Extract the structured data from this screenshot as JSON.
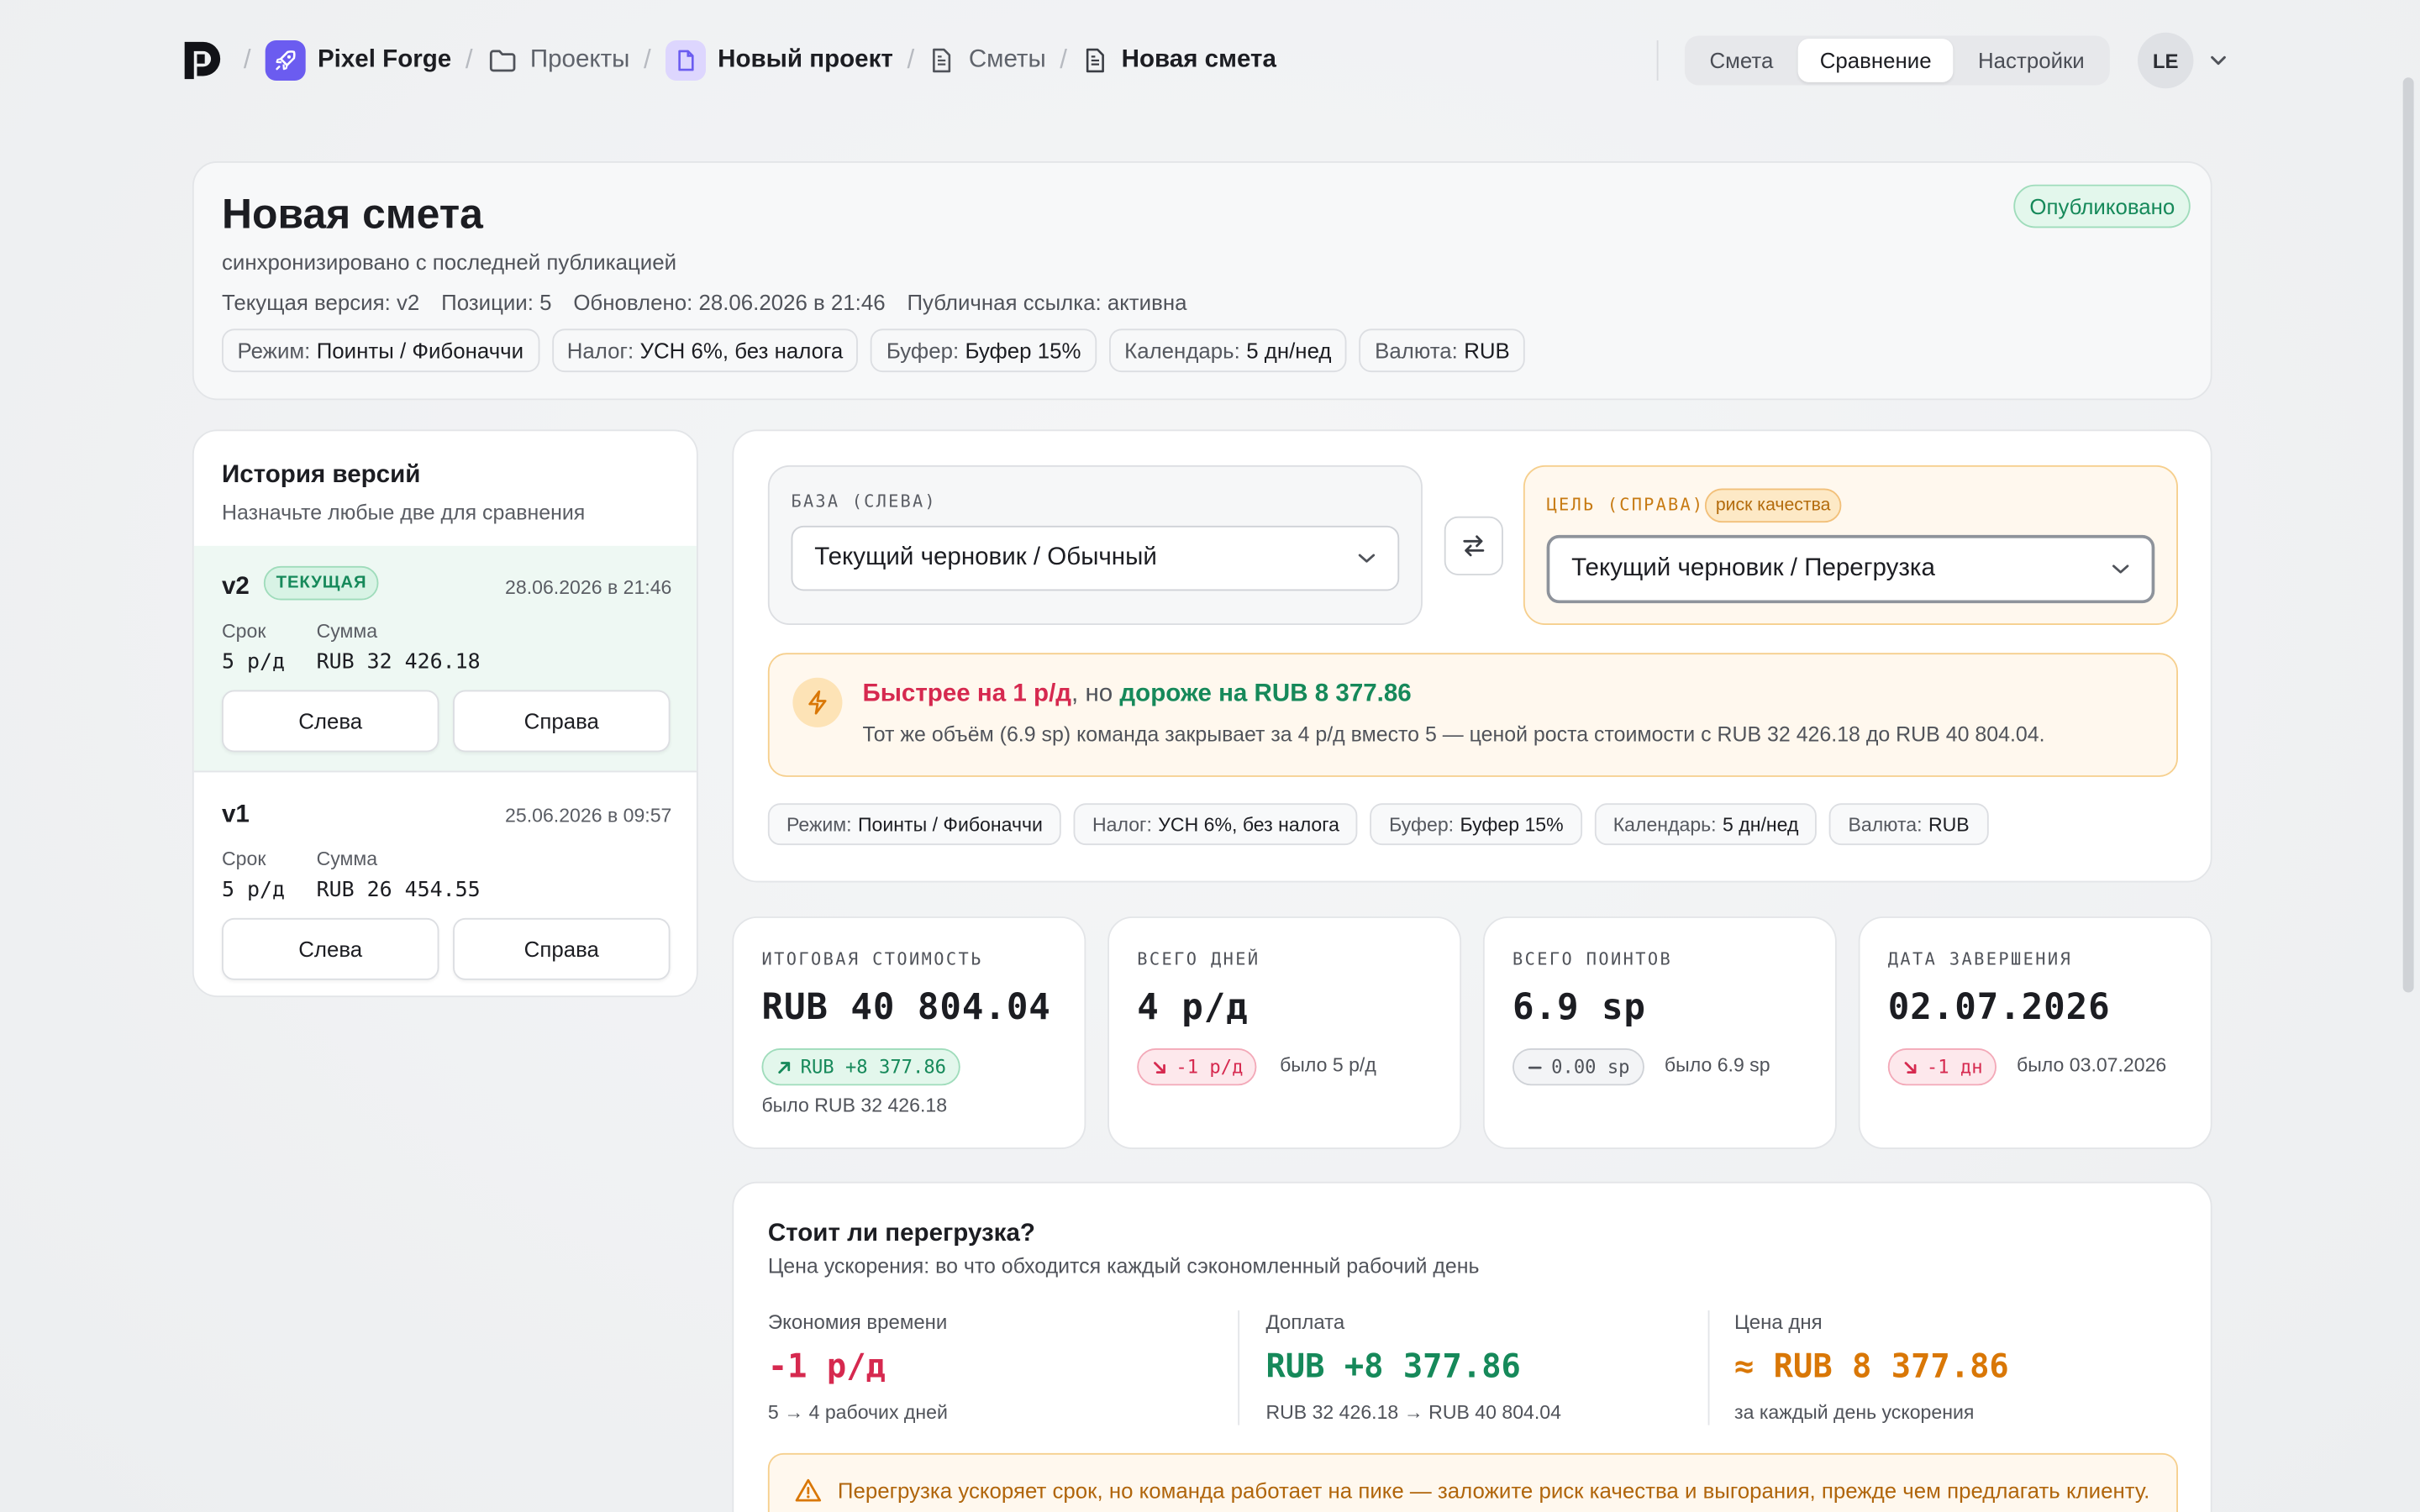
{
  "topbar": {
    "app_name": "Pixel Forge",
    "breadcrumbs": [
      "Проекты",
      "Новый проект",
      "Сметы",
      "Новая смета"
    ],
    "tabs": [
      "Смета",
      "Сравнение",
      "Настройки"
    ],
    "active_tab": "Сравнение",
    "user_initials": "LE"
  },
  "header": {
    "title": "Новая смета",
    "sync_status": "синхронизировано с последней публикацией",
    "status_badge": "Опубликовано",
    "meta": [
      "Текущая версия: v2",
      "Позиции: 5",
      "Обновлено: 28.06.2026 в 21:46",
      "Публичная ссылка: активна"
    ],
    "chips": [
      {
        "label": "Режим:",
        "value": "Поинты / Фибоначчи"
      },
      {
        "label": "Налог:",
        "value": "УСН 6%, без налога"
      },
      {
        "label": "Буфер:",
        "value": "Буфер 15%"
      },
      {
        "label": "Календарь:",
        "value": "5 дн/нед"
      },
      {
        "label": "Валюта:",
        "value": "RUB"
      }
    ]
  },
  "history": {
    "title": "История версий",
    "subtitle": "Назначьте любые две для сравнения",
    "term_label": "Срок",
    "sum_label": "Сумма",
    "left_button": "Слева",
    "right_button": "Справа",
    "versions": [
      {
        "name": "v2",
        "badge": "ТЕКУЩАЯ",
        "date": "28.06.2026 в 21:46",
        "term": "5 р/д",
        "sum": "RUB 32 426.18"
      },
      {
        "name": "v1",
        "badge": "",
        "date": "25.06.2026 в 09:57",
        "term": "5 р/д",
        "sum": "RUB 26 454.55"
      }
    ]
  },
  "compare": {
    "base_label": "БАЗА (СЛЕВА)",
    "base_value": "Текущий черновик / Обычный",
    "target_label": "ЦЕЛЬ (СПРАВА)",
    "target_badge": "риск качества",
    "target_value": "Текущий черновик / Перегрузка",
    "alert": {
      "faster": "Быстрее на 1 р/д",
      "joiner": ", но ",
      "costlier": "дороже на RUB 8 377.86",
      "body": "Тот же объём (6.9 sp) команда закрывает за 4 р/д вместо 5 — ценой роста стоимости с RUB 32 426.18 до RUB 40 804.04."
    }
  },
  "stats": [
    {
      "label": "ИТОГОВАЯ СТОИМОСТЬ",
      "value": "RUB 40 804.04",
      "delta": "RUB +8 377.86",
      "was": "было RUB 32 426.18"
    },
    {
      "label": "ВСЕГО ДНЕЙ",
      "value": "4 р/д",
      "delta": "-1 р/д",
      "was": "было 5 р/д"
    },
    {
      "label": "ВСЕГО ПОИНТОВ",
      "value": "6.9 sp",
      "delta": "0.00 sp",
      "was": "было 6.9 sp"
    },
    {
      "label": "ДАТА ЗАВЕРШЕНИЯ",
      "value": "02.07.2026",
      "delta": "-1 дн",
      "was": "было 03.07.2026"
    }
  ],
  "overload": {
    "title": "Стоит ли перегрузка?",
    "subtitle": "Цена ускорения: во что обходится каждый сэкономленный рабочий день",
    "columns": [
      {
        "label": "Экономия времени",
        "value": "-1 р/д",
        "note": "5 → 4 рабочих дней"
      },
      {
        "label": "Доплата",
        "value": "RUB +8 377.86",
        "note": "RUB 32 426.18 → RUB 40 804.04"
      },
      {
        "label": "Цена дня",
        "value": "≈ RUB 8 377.86",
        "note": "за каждый день ускорения"
      }
    ],
    "warning": "Перегрузка ускоряет срок, но команда работает на пике — заложите риск качества и выгорания, прежде чем предлагать клиенту."
  },
  "colors": {
    "accent_purple": "#6b5cf0",
    "positive_green": "#16895a",
    "negative_red": "#d6294f",
    "warning_orange": "#d97706"
  }
}
